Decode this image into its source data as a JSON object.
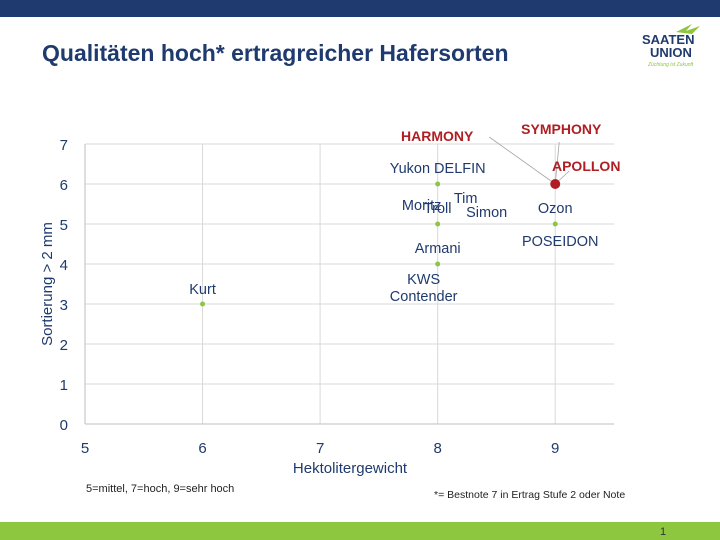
{
  "slide": {
    "title": "Qualitäten hoch* ertragreicher Hafersorten",
    "footnote_left": "5=mittel, 7=hoch, 9=sehr hoch",
    "footnote_right": "*= Bestnote 7 in Ertrag Stufe 2 oder Note",
    "page_number": "1"
  },
  "logo": {
    "line1": "SAATEN",
    "line2": "UNION",
    "tagline": "Züchtung ist Zukunft",
    "color": "#1f3a6e",
    "accent": "#8dc63f"
  },
  "colors": {
    "top_bar": "#1f3a6e",
    "bottom_bar": "#8dc63f",
    "point": "#8dc63f",
    "highlight": "#b01e23",
    "axis_text": "#1f3a6e"
  },
  "chart_data": {
    "type": "scatter",
    "xlabel": "Hektolitergewicht",
    "ylabel": "Sortierung > 2 mm",
    "xlim": [
      5,
      9.5
    ],
    "ylim": [
      0,
      7
    ],
    "xticks": [
      5,
      6,
      7,
      8,
      9
    ],
    "yticks": [
      0,
      1,
      2,
      3,
      4,
      5,
      6,
      7
    ],
    "grid": true,
    "points": [
      {
        "x": 6,
        "y": 3,
        "label": [
          "Kurt"
        ]
      },
      {
        "x": 8,
        "y": 6,
        "label": [
          "Yukon DELFIN"
        ]
      },
      {
        "x": 8,
        "y": 5,
        "label": [
          "Moritz"
        ]
      },
      {
        "x": 8,
        "y": 5,
        "label": [
          "Troll"
        ]
      },
      {
        "x": 8,
        "y": 5,
        "label": [
          "Tim"
        ]
      },
      {
        "x": 8,
        "y": 5,
        "label": [
          "Simon"
        ]
      },
      {
        "x": 8,
        "y": 4,
        "label": [
          "Armani"
        ]
      },
      {
        "x": 8,
        "y": 4,
        "label": [
          "KWS",
          "Contender"
        ]
      },
      {
        "x": 9,
        "y": 5,
        "label": [
          "Ozon"
        ]
      },
      {
        "x": 9,
        "y": 5,
        "label": [
          "POSEIDON"
        ]
      },
      {
        "x": 9,
        "y": 6,
        "label": [
          "HARMONY"
        ],
        "highlight": true
      },
      {
        "x": 9,
        "y": 6,
        "label": [
          "SYMPHONY"
        ],
        "highlight": true
      },
      {
        "x": 9,
        "y": 6,
        "label": [
          "APOLLON"
        ],
        "highlight": true
      }
    ]
  }
}
